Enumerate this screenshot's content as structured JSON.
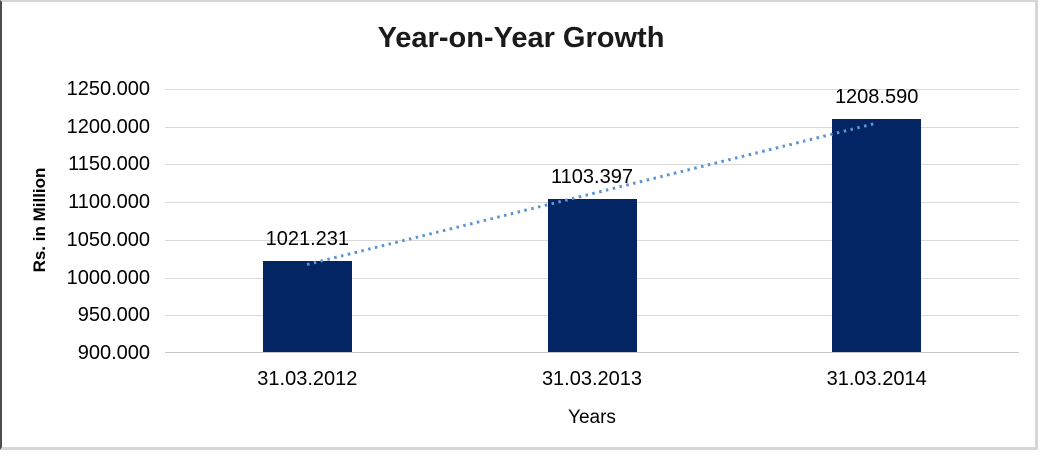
{
  "chart_data": {
    "type": "bar",
    "title": "Year-on-Year Growth",
    "xlabel": "Years",
    "ylabel": "Rs. in Million",
    "categories": [
      "31.03.2012",
      "31.03.2013",
      "31.03.2014"
    ],
    "values": [
      1021.231,
      1103.397,
      1208.59
    ],
    "data_labels": [
      "1021.231",
      "1103.397",
      "1208.590"
    ],
    "y_ticks": [
      "1250.000",
      "1200.000",
      "1150.000",
      "1100.000",
      "1050.000",
      "1000.000",
      "950.000",
      "900.000"
    ],
    "ylim": [
      900,
      1250
    ],
    "grid": true,
    "legend": false,
    "bar_color": "#032563",
    "gridline_color": "#d9d9d9",
    "trendline": {
      "type": "linear",
      "style": "dotted",
      "color": "#5b93d5"
    }
  }
}
